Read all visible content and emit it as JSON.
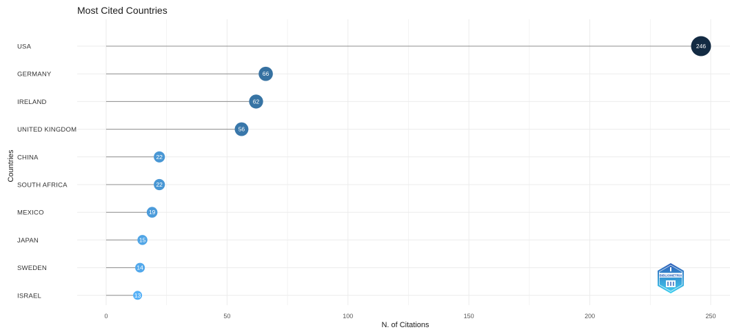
{
  "chart_data": {
    "type": "lollipop",
    "title": "Most Cited Countries",
    "xlabel": "N. of Citations",
    "ylabel": "Countries",
    "xlim": [
      -12,
      255
    ],
    "xticks": [
      0,
      50,
      100,
      150,
      200,
      250
    ],
    "grid": true,
    "categories": [
      "USA",
      "GERMANY",
      "IRELAND",
      "UNITED KINGDOM",
      "CHINA",
      "SOUTH AFRICA",
      "MEXICO",
      "JAPAN",
      "SWEDEN",
      "ISRAEL"
    ],
    "values": [
      246,
      66,
      62,
      56,
      22,
      22,
      19,
      15,
      14,
      13
    ],
    "colors": {
      "high": "#132b43",
      "low": "#56b1f7",
      "stem": "#8c8c8c",
      "grid": "#ebebeb"
    }
  },
  "logo": {
    "text": "BIBLIOMETRIX",
    "colors": [
      "#2e5fb8",
      "#3fd0f0"
    ]
  }
}
